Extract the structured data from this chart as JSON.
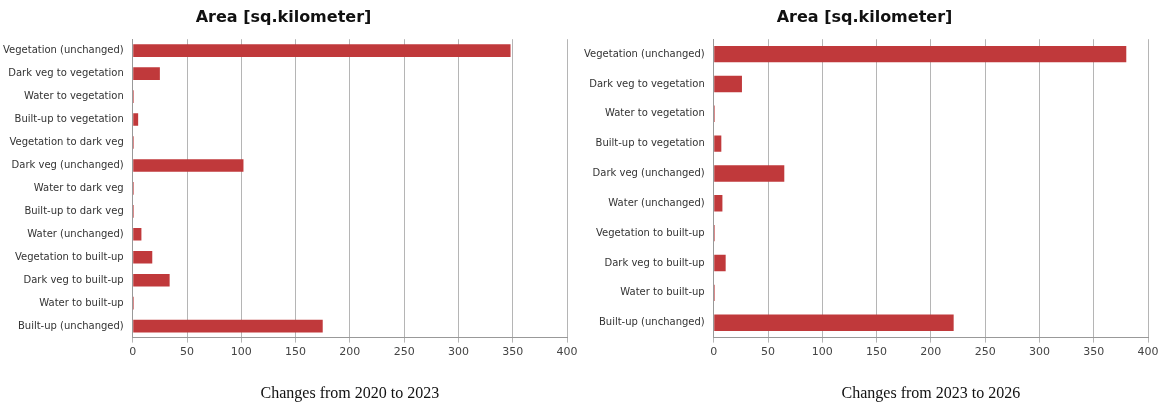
{
  "chart_data": [
    {
      "type": "bar",
      "orientation": "horizontal",
      "title": "Area [sq.kilometer]",
      "xlabel": "Changes from 2020 to 2023",
      "categories": [
        "Vegetation (unchanged)",
        "Dark veg to vegetation",
        "Water to vegetation",
        "Built-up to vegetation",
        "Vegetation to dark veg",
        "Dark veg (unchanged)",
        "Water to dark veg",
        "Built-up to dark veg",
        "Water (unchanged)",
        "Vegetation to built-up",
        "Dark veg to built-up",
        "Water to built-up",
        "Built-up (unchanged)"
      ],
      "values": [
        348,
        25,
        1,
        5,
        1,
        102,
        1,
        1,
        8,
        18,
        34,
        1,
        175
      ],
      "color": "#c0393b",
      "xlim": [
        0,
        400
      ],
      "xticks": [
        0,
        50,
        100,
        150,
        200,
        250,
        300,
        350,
        400
      ],
      "grid": "x"
    },
    {
      "type": "bar",
      "orientation": "horizontal",
      "title": "Area [sq.kilometer]",
      "xlabel": "Changes from 2023 to 2026",
      "categories": [
        "Vegetation (unchanged)",
        "Dark veg to vegetation",
        "Water to vegetation",
        "Built-up to vegetation",
        "Dark veg (unchanged)",
        "Water (unchanged)",
        "Vegetation to built-up",
        "Dark veg to built-up",
        "Water to built-up",
        "Built-up (unchanged)"
      ],
      "values": [
        380,
        26,
        1,
        7,
        65,
        8,
        1,
        11,
        1,
        221
      ],
      "color": "#c0393b",
      "xlim": [
        0,
        400
      ],
      "xticks": [
        0,
        50,
        100,
        150,
        200,
        250,
        300,
        350,
        400
      ],
      "grid": "x"
    }
  ]
}
